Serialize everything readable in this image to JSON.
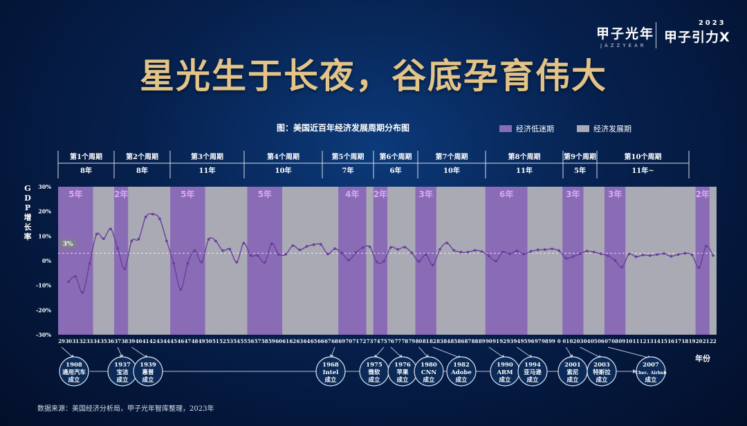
{
  "headline": "星光生于长夜，谷底孕育伟大",
  "brand": {
    "cn": "甲子光年",
    "en": "JAZZYEAR",
    "year": "2023",
    "name": "甲子引力X"
  },
  "source": "数据来源：美国经济分析局，甲子光年智库整理，2023年",
  "colors": {
    "recession": "#8a6bb6",
    "growth": "#a9aab4",
    "line": "#6a3d9e",
    "label": "#d9a9f2"
  },
  "chart_data": {
    "type": "line",
    "title": "图：美国近百年经济发展周期分布图",
    "ylabel": "GDP增长率",
    "xlabel": "年份",
    "ylim": [
      -30,
      30
    ],
    "yticks": [
      "30%",
      "20%",
      "10%",
      "0%",
      "-10%",
      "-20%",
      "-30%"
    ],
    "reference_line": {
      "value": 3,
      "label": "3%"
    },
    "legend": [
      {
        "name": "经济低迷期",
        "color": "#8a6bb6"
      },
      {
        "name": "经济发展期",
        "color": "#a9aab4"
      }
    ],
    "x_tick_labels": [
      "29",
      "30",
      "31",
      "32",
      "33",
      "34",
      "35",
      "36",
      "37",
      "38",
      "39",
      "40",
      "41",
      "42",
      "43",
      "44",
      "45",
      "46",
      "47",
      "48",
      "49",
      "50",
      "51",
      "52",
      "53",
      "54",
      "55",
      "56",
      "57",
      "58",
      "59",
      "60",
      "61",
      "62",
      "63",
      "64",
      "65",
      "66",
      "67",
      "68",
      "69",
      "70",
      "71",
      "72",
      "73",
      "74",
      "75",
      "76",
      "77",
      "78",
      "79",
      "80",
      "81",
      "82",
      "83",
      "84",
      "85",
      "86",
      "87",
      "88",
      "89",
      "90",
      "91",
      "92",
      "93",
      "94",
      "95",
      "96",
      "97",
      "98",
      "99",
      "0",
      "01",
      "02",
      "03",
      "04",
      "05",
      "06",
      "07",
      "08",
      "09",
      "10",
      "11",
      "12",
      "13",
      "14",
      "15",
      "16",
      "17",
      "18",
      "19",
      "20",
      "21",
      "22"
    ],
    "series": [
      {
        "x": [
          1930,
          1931,
          1932,
          1933,
          1934,
          1935,
          1936,
          1937,
          1938,
          1939,
          1940,
          1941,
          1942,
          1943,
          1944,
          1945,
          1946,
          1947,
          1948,
          1949,
          1950,
          1951,
          1952,
          1953,
          1954,
          1955,
          1956,
          1957,
          1958,
          1959,
          1960,
          1961,
          1962,
          1963,
          1964,
          1965,
          1966,
          1967,
          1968,
          1969,
          1970,
          1971,
          1972,
          1973,
          1974,
          1975,
          1976,
          1977,
          1978,
          1979,
          1980,
          1981,
          1982,
          1983,
          1984,
          1985,
          1986,
          1987,
          1988,
          1989,
          1990,
          1991,
          1992,
          1993,
          1994,
          1995,
          1996,
          1997,
          1998,
          1999,
          2000,
          2001,
          2002,
          2003,
          2004,
          2005,
          2006,
          2007,
          2008,
          2009,
          2010,
          2011,
          2012,
          2013,
          2014,
          2015,
          2016,
          2017,
          2018,
          2019,
          2020,
          2021,
          2022
        ],
        "values": [
          -8.5,
          -6.4,
          -12.9,
          -1.2,
          10.8,
          8.9,
          12.9,
          5.1,
          -3.3,
          8.0,
          8.8,
          17.7,
          18.9,
          17.0,
          8.0,
          -1.0,
          -11.6,
          -1.1,
          4.1,
          -0.6,
          8.7,
          8.0,
          4.1,
          4.7,
          -0.6,
          7.1,
          2.1,
          2.1,
          -0.7,
          6.9,
          2.6,
          2.6,
          6.1,
          4.4,
          5.8,
          6.5,
          6.6,
          2.7,
          4.9,
          3.1,
          0.2,
          3.3,
          5.3,
          5.6,
          -0.5,
          -0.2,
          5.4,
          4.6,
          5.5,
          3.2,
          -0.3,
          2.5,
          -1.8,
          4.6,
          7.2,
          4.2,
          3.5,
          3.5,
          4.2,
          3.7,
          1.9,
          -0.1,
          3.5,
          2.8,
          4.0,
          2.7,
          3.8,
          4.4,
          4.5,
          4.8,
          4.1,
          1.0,
          1.7,
          2.8,
          3.9,
          3.5,
          2.8,
          2.0,
          0.1,
          -2.6,
          2.7,
          1.6,
          2.3,
          2.1,
          2.5,
          2.9,
          1.8,
          2.5,
          3.0,
          2.3,
          -2.8,
          5.9,
          2.1
        ]
      }
    ],
    "cycles": [
      {
        "label": "第1个周期",
        "years": "8年"
      },
      {
        "label": "第2个周期",
        "years": "8年"
      },
      {
        "label": "第3个周期",
        "years": "11年"
      },
      {
        "label": "第4个周期",
        "years": "10年"
      },
      {
        "label": "第5个周期",
        "years": "7年"
      },
      {
        "label": "第6个周期",
        "years": "6年"
      },
      {
        "label": "第7个周期",
        "years": "10年"
      },
      {
        "label": "第8个周期",
        "years": "11年"
      },
      {
        "label": "第9个周期",
        "years": "5年"
      },
      {
        "label": "第10个周期",
        "years": "11年~"
      }
    ],
    "bands": [
      {
        "type": "recession",
        "from": 1929,
        "to": 1933,
        "label": "5年"
      },
      {
        "type": "growth",
        "from": 1934,
        "to": 1936
      },
      {
        "type": "recession",
        "from": 1937,
        "to": 1938,
        "label": "2年"
      },
      {
        "type": "growth",
        "from": 1939,
        "to": 1944
      },
      {
        "type": "recession",
        "from": 1945,
        "to": 1949,
        "label": "5年"
      },
      {
        "type": "growth",
        "from": 1950,
        "to": 1955
      },
      {
        "type": "recession",
        "from": 1956,
        "to": 1960,
        "label": "5年"
      },
      {
        "type": "growth",
        "from": 1961,
        "to": 1968
      },
      {
        "type": "recession",
        "from": 1969,
        "to": 1972,
        "label": "4年"
      },
      {
        "type": "growth",
        "from": 1973,
        "to": 1973
      },
      {
        "type": "recession",
        "from": 1974,
        "to": 1975,
        "label": "2年"
      },
      {
        "type": "growth",
        "from": 1976,
        "to": 1979
      },
      {
        "type": "recession",
        "from": 1980,
        "to": 1982,
        "label": "3年"
      },
      {
        "type": "growth",
        "from": 1983,
        "to": 1989
      },
      {
        "type": "recession",
        "from": 1990,
        "to": 1995,
        "label": "6年"
      },
      {
        "type": "growth",
        "from": 1996,
        "to": 2000
      },
      {
        "type": "recession",
        "from": 2001,
        "to": 2003,
        "label": "3年"
      },
      {
        "type": "growth",
        "from": 2004,
        "to": 2006
      },
      {
        "type": "recession",
        "from": 2007,
        "to": 2009,
        "label": "3年"
      },
      {
        "type": "growth",
        "from": 2010,
        "to": 2019
      },
      {
        "type": "recession",
        "from": 2020,
        "to": 2021,
        "label": "2年"
      },
      {
        "type": "growth",
        "from": 2022,
        "to": 2022
      }
    ],
    "events": [
      {
        "year": 1929,
        "year_label": "1908",
        "company": "通用汽车",
        "caption": "成立"
      },
      {
        "year": 1937,
        "year_label": "1937",
        "company": "宝洁",
        "caption": "成立"
      },
      {
        "year": 1939,
        "year_label": "1939",
        "company": "惠普",
        "caption": "成立"
      },
      {
        "year": 1968,
        "year_label": "1968",
        "company": "Intel",
        "caption": "成立"
      },
      {
        "year": 1975,
        "year_label": "1975",
        "company": "微软",
        "caption": "成立"
      },
      {
        "year": 1976,
        "year_label": "1976",
        "company": "苹果",
        "caption": "成立"
      },
      {
        "year": 1980,
        "year_label": "1980",
        "company": "CNN",
        "caption": "成立"
      },
      {
        "year": 1982,
        "year_label": "1982",
        "company": "Adobe",
        "caption": "成立"
      },
      {
        "year": 1990,
        "year_label": "1990",
        "company": "ARM",
        "caption": "成立"
      },
      {
        "year": 1994,
        "year_label": "1994",
        "company": "亚马逊",
        "caption": "成立"
      },
      {
        "year": 2001,
        "year_label": "2001",
        "company": "索尼",
        "caption": "成立"
      },
      {
        "year": 2003,
        "year_label": "2003",
        "company": "特斯拉",
        "caption": "成立"
      },
      {
        "year": 2007,
        "year_label": "2007",
        "company": "Uber、Airbnb",
        "caption": "成立"
      }
    ]
  }
}
